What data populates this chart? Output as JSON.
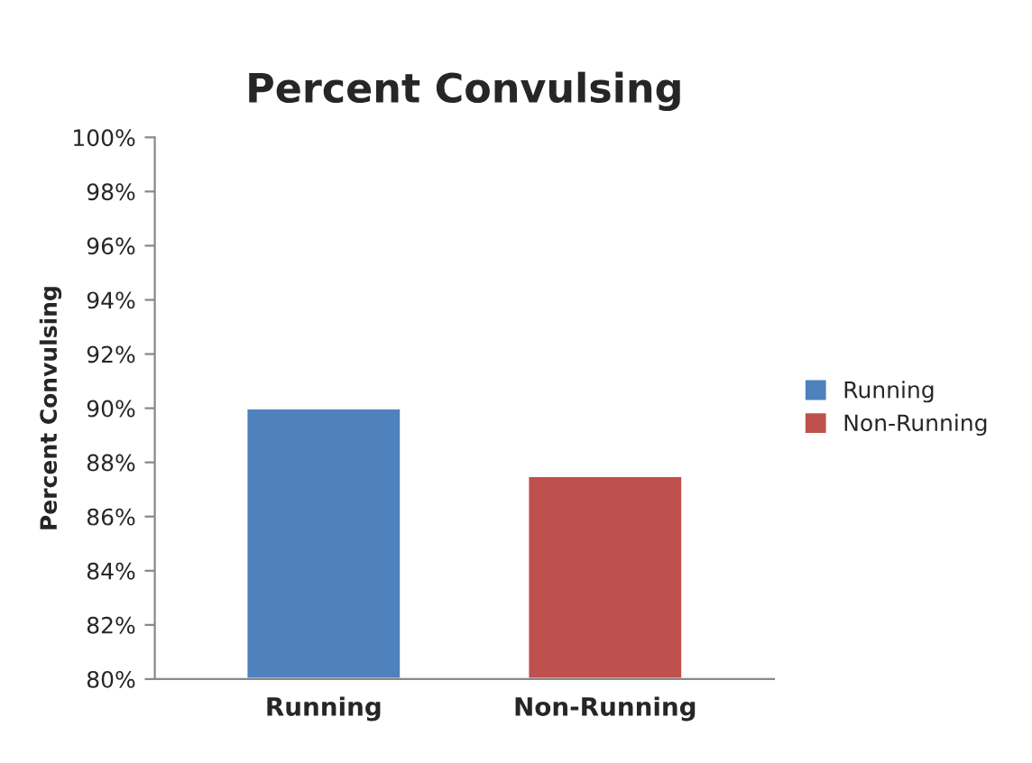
{
  "chart_data": {
    "type": "bar",
    "title": "Percent Convulsing",
    "ylabel": "Percent Convulsing",
    "categories": [
      "Running",
      "Non-Running"
    ],
    "series": [
      {
        "name": "Running",
        "color": "#4f81bd",
        "values": [
          90,
          null
        ]
      },
      {
        "name": "Non-Running",
        "color": "#c0504d",
        "values": [
          null,
          87.5
        ]
      }
    ],
    "ylim": [
      80,
      100
    ],
    "yticks": [
      {
        "value": 80,
        "label": "80%"
      },
      {
        "value": 82,
        "label": "82%"
      },
      {
        "value": 84,
        "label": "84%"
      },
      {
        "value": 86,
        "label": "86%"
      },
      {
        "value": 88,
        "label": "88%"
      },
      {
        "value": 90,
        "label": "90%"
      },
      {
        "value": 92,
        "label": "92%"
      },
      {
        "value": 94,
        "label": "94%"
      },
      {
        "value": 96,
        "label": "96%"
      },
      {
        "value": 98,
        "label": "98%"
      },
      {
        "value": 100,
        "label": "100%"
      }
    ],
    "grid": false,
    "legend": "right"
  }
}
